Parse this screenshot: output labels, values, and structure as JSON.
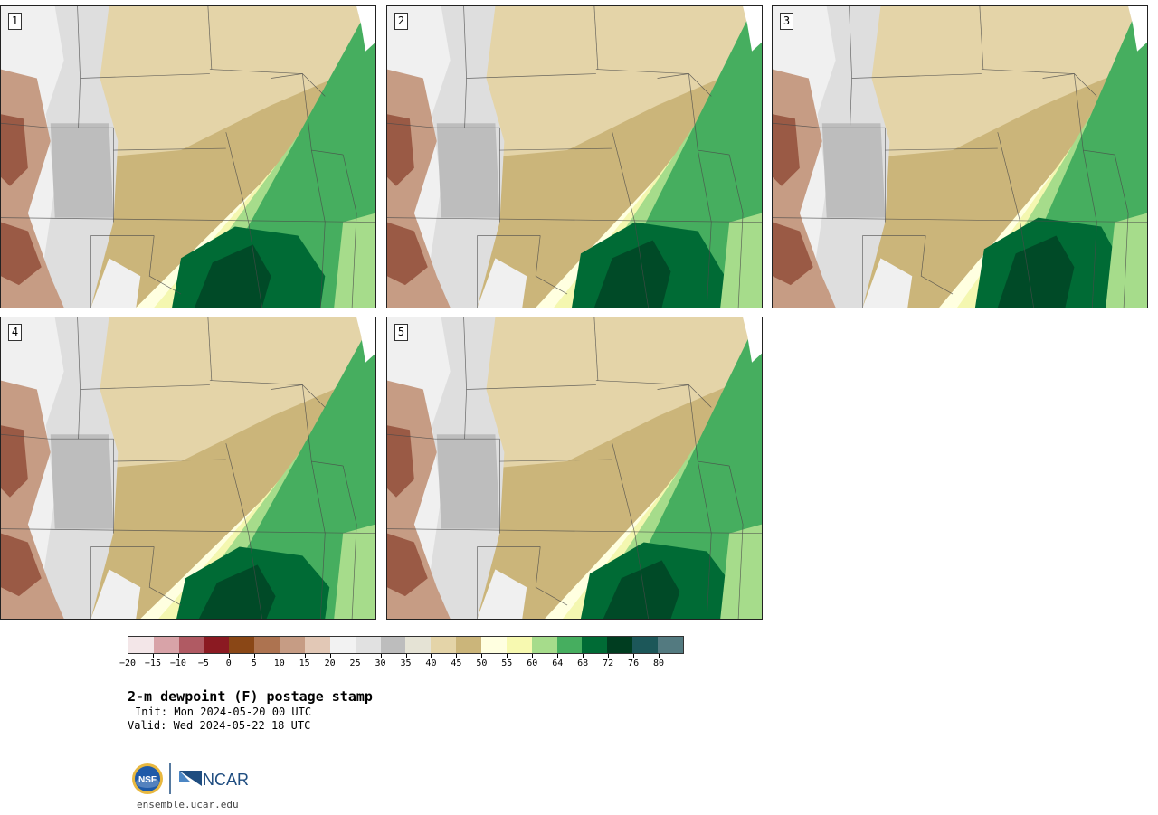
{
  "panels": [
    {
      "label": "1"
    },
    {
      "label": "2"
    },
    {
      "label": "3"
    },
    {
      "label": "4"
    },
    {
      "label": "5"
    }
  ],
  "colorbar": {
    "colors": [
      "#f3e6e8",
      "#d8a3a8",
      "#b05a63",
      "#8b1a22",
      "#8a4716",
      "#ad7350",
      "#c69c84",
      "#e2c8b6",
      "#f2f2f2",
      "#e1e1e1",
      "#bdbdbd",
      "#e5e3d5",
      "#e4d4a8",
      "#cbb57a",
      "#ffffe0",
      "#f7f9b0",
      "#a6dc8b",
      "#46ae5f",
      "#006b35",
      "#003d20",
      "#1c5759",
      "#537a80"
    ],
    "tick_labels": [
      "−20",
      "−15",
      "−10",
      "−5",
      "0",
      "5",
      "10",
      "15",
      "20",
      "25",
      "30",
      "35",
      "40",
      "45",
      "50",
      "55",
      "60",
      "64",
      "68",
      "72",
      "76",
      "80"
    ]
  },
  "title": "2-m dewpoint (F) postage stamp",
  "init": "Init: Mon 2024-05-20 00 UTC",
  "valid": "Valid: Wed 2024-05-22 18 UTC",
  "logos": {
    "nsf_text": "NSF",
    "ncar_text": "NCAR"
  },
  "url": "ensemble.ucar.edu"
}
